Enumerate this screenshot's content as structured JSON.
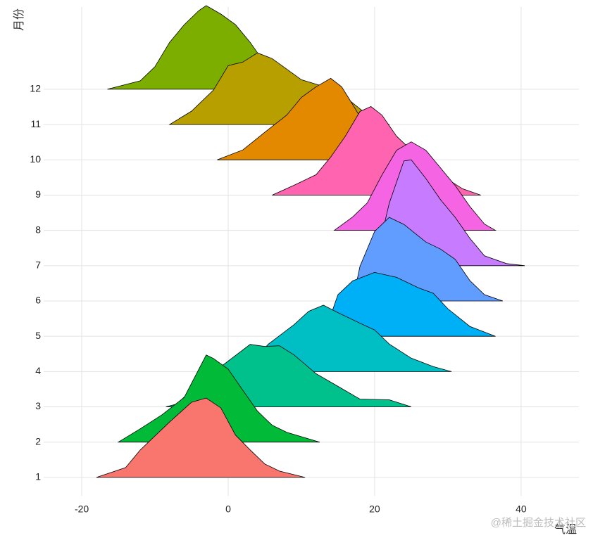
{
  "chart_data": {
    "type": "ridgeline",
    "xlabel": "气温",
    "ylabel": "月份",
    "watermark": "@稀土掘金技术社区",
    "xlim": [
      -25.2,
      47.9
    ],
    "xticks": [
      -20,
      0,
      20,
      40
    ],
    "ylim": [
      0.48,
      14.33
    ],
    "grid": true,
    "categories": [
      "1",
      "2",
      "3",
      "4",
      "5",
      "6",
      "7",
      "8",
      "9",
      "10",
      "11",
      "12"
    ],
    "series": [
      {
        "color": "#F8766D",
        "x": [
          -18,
          -14,
          -12,
          -8,
          -5,
          -3,
          -1,
          1,
          3,
          5,
          7,
          10.5
        ],
        "values": [
          0,
          0.28,
          0.78,
          1.57,
          2.13,
          2.25,
          1.97,
          1.2,
          0.78,
          0.38,
          0.18,
          0
        ]
      },
      {
        "color": "#00BA38",
        "x": [
          -15,
          -12,
          -9,
          -6,
          -5,
          -3,
          -2,
          0,
          2,
          4,
          6,
          8,
          12.5
        ],
        "values": [
          0,
          0.38,
          0.78,
          1.27,
          1.67,
          2.47,
          2.37,
          2.07,
          1.47,
          0.88,
          0.48,
          0.28,
          0
        ]
      },
      {
        "color": "#00C08B",
        "x": [
          -8.5,
          -7,
          -5,
          -1,
          3,
          5,
          7,
          9,
          12,
          15,
          18,
          22,
          25
        ],
        "values": [
          0,
          0.08,
          0.48,
          1.14,
          1.77,
          1.71,
          1.73,
          1.47,
          0.94,
          0.58,
          0.22,
          0.2,
          0
        ]
      },
      {
        "color": "#00BFC4",
        "x": [
          2,
          5.5,
          9,
          11,
          13,
          15,
          18,
          20,
          22,
          25,
          28,
          30.5
        ],
        "values": [
          0,
          0.78,
          1.33,
          1.71,
          1.88,
          1.67,
          1.37,
          1.18,
          0.78,
          0.38,
          0.14,
          0
        ]
      },
      {
        "color": "#00B0F6",
        "x": [
          13,
          15,
          17,
          20,
          23,
          26,
          28,
          30,
          33,
          36.5
        ],
        "values": [
          0,
          1.18,
          1.57,
          1.81,
          1.67,
          1.37,
          1.22,
          0.78,
          0.28,
          0
        ]
      },
      {
        "color": "#619CFF",
        "x": [
          17,
          18,
          20,
          22,
          24,
          27,
          29,
          31,
          33,
          35,
          37.5
        ],
        "values": [
          0,
          0.98,
          1.97,
          2.37,
          2.17,
          1.67,
          1.47,
          1.18,
          0.58,
          0.18,
          0
        ]
      },
      {
        "color": "#C77CFF",
        "x": [
          20,
          22,
          24,
          25,
          27,
          29,
          31,
          33,
          35,
          38,
          40.5
        ],
        "values": [
          0,
          1.77,
          2.97,
          3.0,
          2.47,
          1.87,
          1.37,
          0.78,
          0.28,
          0.06,
          0
        ]
      },
      {
        "color": "#F564E3",
        "x": [
          14.5,
          17,
          19,
          21,
          23,
          25,
          27,
          29,
          31,
          33,
          35,
          36.5
        ],
        "values": [
          0,
          0.38,
          0.78,
          1.57,
          2.27,
          2.51,
          2.27,
          1.77,
          1.27,
          0.68,
          0.18,
          0
        ]
      },
      {
        "color": "#FF64B0",
        "x": [
          6,
          9,
          12,
          14,
          16,
          18,
          19.5,
          21,
          23,
          26,
          29,
          32,
          34.5
        ],
        "values": [
          0,
          0.28,
          0.58,
          1.08,
          1.67,
          2.37,
          2.51,
          2.27,
          1.67,
          1.08,
          0.58,
          0.18,
          0
        ]
      },
      {
        "color": "#E38900",
        "x": [
          -1.5,
          2,
          5,
          8,
          10,
          12,
          14,
          15.5,
          17,
          19,
          22,
          25,
          27
        ],
        "values": [
          0,
          0.28,
          0.78,
          1.27,
          1.77,
          2.07,
          2.31,
          2.07,
          1.57,
          0.88,
          0.38,
          0.08,
          0
        ]
      },
      {
        "color": "#B79F00",
        "x": [
          -8,
          -5,
          -2,
          0,
          2,
          4,
          6,
          8,
          10,
          13,
          16,
          19,
          22
        ],
        "values": [
          0,
          0.38,
          0.98,
          1.67,
          1.77,
          2.03,
          1.87,
          1.57,
          1.27,
          1.08,
          0.78,
          0.28,
          0
        ]
      },
      {
        "color": "#7CAE00",
        "x": [
          -16.5,
          -12,
          -10,
          -8,
          -6,
          -4,
          -3,
          -1,
          1,
          3,
          5,
          8,
          11,
          14
        ],
        "values": [
          0,
          0.24,
          0.64,
          1.33,
          1.83,
          2.23,
          2.37,
          2.13,
          1.83,
          1.33,
          0.74,
          0.34,
          0.14,
          0
        ]
      }
    ]
  }
}
